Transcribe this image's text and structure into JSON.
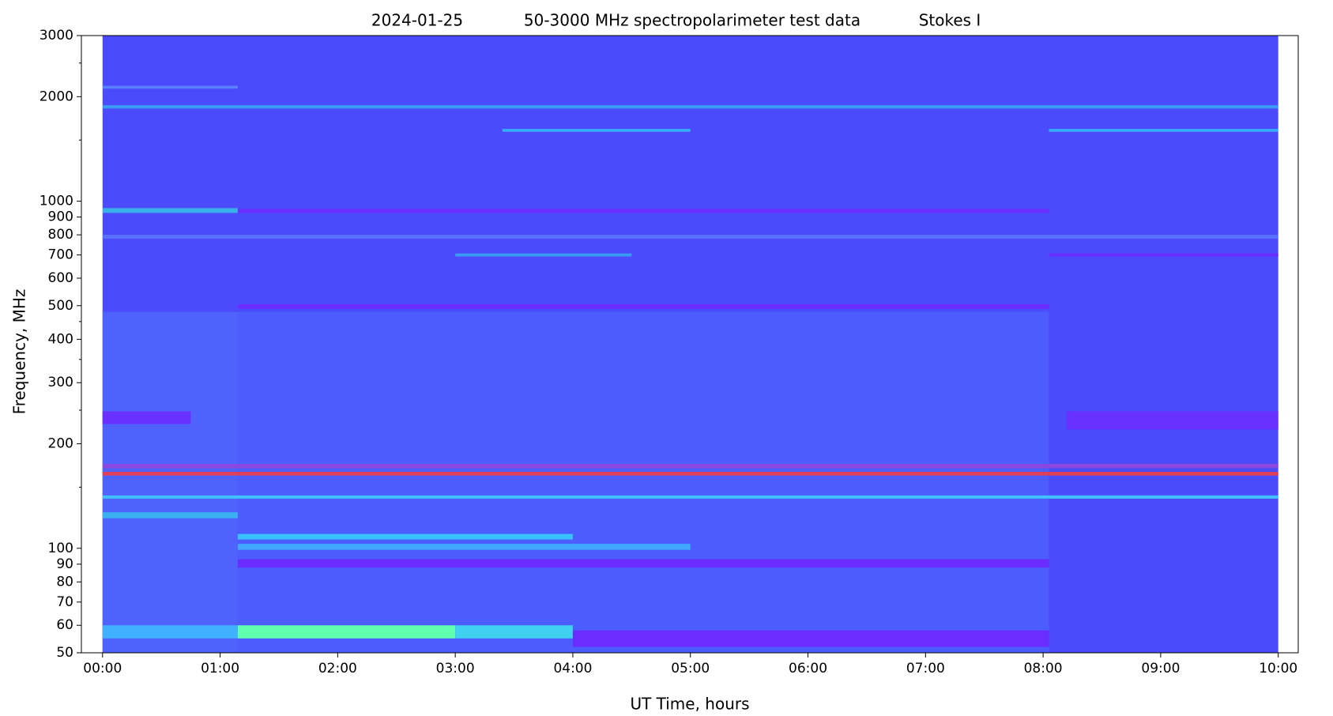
{
  "chart_data": {
    "type": "spectrogram",
    "title_parts": [
      "2024-01-25",
      "50-3000 MHz spectropolarimeter test data",
      "Stokes I"
    ],
    "xlabel": "UT Time, hours",
    "ylabel": "Frequency, MHz",
    "xlim": [
      -0.18,
      10.17
    ],
    "xticks": [
      {
        "value": 0,
        "label": "00:00"
      },
      {
        "value": 1,
        "label": "01:00"
      },
      {
        "value": 2,
        "label": "02:00"
      },
      {
        "value": 3,
        "label": "03:00"
      },
      {
        "value": 4,
        "label": "04:00"
      },
      {
        "value": 5,
        "label": "05:00"
      },
      {
        "value": 6,
        "label": "06:00"
      },
      {
        "value": 7,
        "label": "07:00"
      },
      {
        "value": 8,
        "label": "08:00"
      },
      {
        "value": 9,
        "label": "09:00"
      },
      {
        "value": 10,
        "label": "10:00"
      }
    ],
    "ylim": [
      50,
      3000
    ],
    "ylog": true,
    "yticks": [
      50,
      60,
      70,
      80,
      90,
      100,
      200,
      300,
      400,
      500,
      600,
      700,
      800,
      900,
      1000,
      2000,
      3000
    ],
    "yminor_ticks": [
      150,
      250,
      350,
      450,
      1500,
      2500
    ],
    "bands": [
      {
        "t": [
          0,
          10
        ],
        "f": [
          50,
          3000
        ],
        "color": "#4b4bfc"
      },
      {
        "t": [
          0,
          1.15
        ],
        "f": [
          50,
          480
        ],
        "color": "#4f62fc"
      },
      {
        "t": [
          1.15,
          8.05
        ],
        "f": [
          50,
          480
        ],
        "color": "#4d5cfc"
      },
      {
        "t": [
          0,
          1.15
        ],
        "f": [
          2110,
          2150
        ],
        "color": "#5a80ff"
      },
      {
        "t": [
          0,
          10
        ],
        "f": [
          1850,
          1890
        ],
        "color": "#3a9cf2"
      },
      {
        "t": [
          3.4,
          5
        ],
        "f": [
          1585,
          1615
        ],
        "color": "#34b0fa"
      },
      {
        "t": [
          8.05,
          10
        ],
        "f": [
          1585,
          1615
        ],
        "color": "#34b0fa"
      },
      {
        "t": [
          0,
          1.15
        ],
        "f": [
          925,
          955
        ],
        "color": "#38b0e8"
      },
      {
        "t": [
          1.15,
          8.05
        ],
        "f": [
          925,
          950
        ],
        "color": "#6a2cff"
      },
      {
        "t": [
          0,
          10
        ],
        "f": [
          780,
          800
        ],
        "color": "#5a70ff"
      },
      {
        "t": [
          3,
          4.5
        ],
        "f": [
          693,
          707
        ],
        "color": "#3a9cf0"
      },
      {
        "t": [
          8.05,
          10
        ],
        "f": [
          693,
          707
        ],
        "color": "#6a2cff"
      },
      {
        "t": [
          1.15,
          8.05
        ],
        "f": [
          490,
          505
        ],
        "color": "#6a2cff"
      },
      {
        "t": [
          0,
          0.75
        ],
        "f": [
          228,
          248
        ],
        "color": "#6a30ff"
      },
      {
        "t": [
          8.2,
          10
        ],
        "f": [
          220,
          248
        ],
        "color": "#6a30ff"
      },
      {
        "t": [
          0,
          10
        ],
        "f": [
          170,
          175
        ],
        "color": "#8a48e0"
      },
      {
        "t": [
          0,
          10
        ],
        "f": [
          162,
          166
        ],
        "color": "#e0405a"
      },
      {
        "t": [
          0,
          10
        ],
        "f": [
          139,
          142
        ],
        "color": "#40c0ff"
      },
      {
        "t": [
          0,
          1.15
        ],
        "f": [
          122,
          127
        ],
        "color": "#3ab0f0"
      },
      {
        "t": [
          1.15,
          4
        ],
        "f": [
          106,
          110
        ],
        "color": "#38c0ff"
      },
      {
        "t": [
          1.15,
          5
        ],
        "f": [
          99,
          103
        ],
        "color": "#40a8ff"
      },
      {
        "t": [
          1.15,
          8.05
        ],
        "f": [
          88,
          93
        ],
        "color": "#6a2cff"
      },
      {
        "t": [
          0,
          1.15
        ],
        "f": [
          55,
          60
        ],
        "color": "#40b0ff"
      },
      {
        "t": [
          1.15,
          3
        ],
        "f": [
          55,
          60
        ],
        "color": "#60ffb0"
      },
      {
        "t": [
          3,
          4
        ],
        "f": [
          55,
          60
        ],
        "color": "#40d0f0"
      },
      {
        "t": [
          4,
          8.05
        ],
        "f": [
          52,
          58
        ],
        "color": "#6a2cff"
      }
    ]
  }
}
